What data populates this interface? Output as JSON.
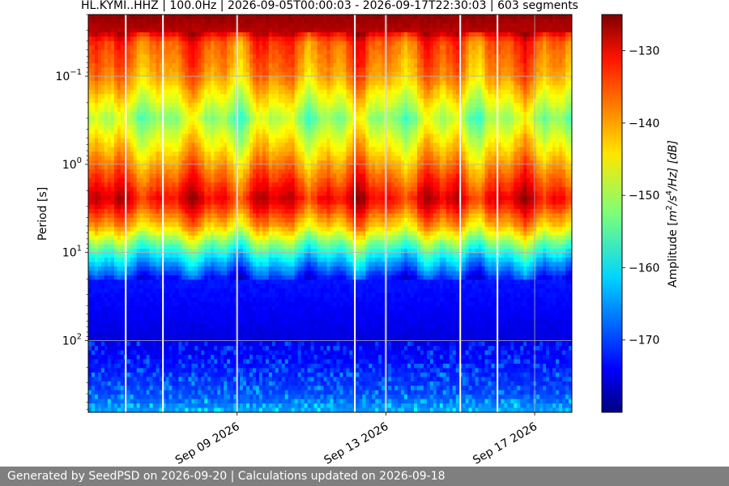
{
  "chart_data": {
    "type": "heatmap",
    "title": "HL.KYMI..HHZ | 100.0Hz | 2026-09-05T00:00:03 - 2026-09-17T22:30:03 | 603 segments",
    "ylabel": "Period [s]",
    "y_scale": "log",
    "y_inverted": true,
    "y_range": [
      0.02,
      650
    ],
    "x_range": [
      "2026-09-05T00:00:03",
      "2026-09-18T00:00:00"
    ],
    "x_ticks": [
      {
        "date": "2026-09-09",
        "label": "Sep 09 2026"
      },
      {
        "date": "2026-09-13",
        "label": "Sep 13 2026"
      },
      {
        "date": "2026-09-17",
        "label": "Sep 17 2026"
      }
    ],
    "y_ticks": [
      {
        "value": 0.1,
        "base": "10",
        "exp": "−1"
      },
      {
        "value": 1,
        "base": "10",
        "exp": "0"
      },
      {
        "value": 10,
        "base": "10",
        "exp": "1"
      },
      {
        "value": 100,
        "base": "10",
        "exp": "2"
      }
    ],
    "grid": true,
    "colormap": "jet",
    "colorbar": {
      "label_parts": {
        "pre": "Amplitude [",
        "unit": "m",
        "sup1": "2",
        "mid": "/s",
        "sup2": "4",
        "post": "/Hz] [dB]"
      },
      "range": [
        -180,
        -125
      ],
      "ticks": [
        {
          "value": -130,
          "label": "−130"
        },
        {
          "value": -140,
          "label": "−140"
        },
        {
          "value": -150,
          "label": "−150"
        },
        {
          "value": -160,
          "label": "−160"
        },
        {
          "value": -170,
          "label": "−170"
        }
      ]
    },
    "data_gaps": [
      "2026-09-06T00:10",
      "2026-09-07T00:10",
      "2026-09-09T00:00",
      "2026-09-12T04:00",
      "2026-09-13T00:00",
      "2026-09-15T00:00",
      "2026-09-16T00:00"
    ],
    "amplitude_profile_db": [
      {
        "period": 0.02,
        "value": -126
      },
      {
        "period": 0.03,
        "value": -128
      },
      {
        "period": 0.04,
        "value": -136
      },
      {
        "period": 0.1,
        "value": -140
      },
      {
        "period": 0.3,
        "value": -151
      },
      {
        "period": 0.8,
        "value": -142
      },
      {
        "period": 2.5,
        "value": -131
      },
      {
        "period": 5,
        "value": -142
      },
      {
        "period": 10,
        "value": -158
      },
      {
        "period": 20,
        "value": -172
      },
      {
        "period": 100,
        "value": -175
      },
      {
        "period": 400,
        "value": -170
      },
      {
        "period": 650,
        "value": -165
      }
    ]
  },
  "footer": {
    "text": "Generated by SeedPSD on 2026-09-20 | Calculations updated on 2026-09-18"
  }
}
